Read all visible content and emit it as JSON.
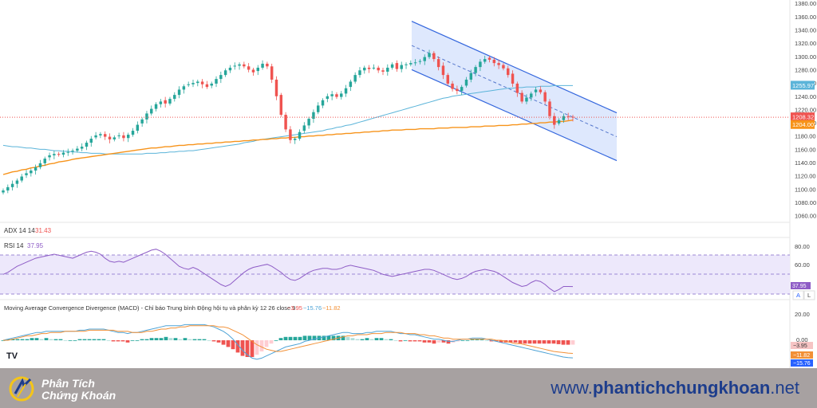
{
  "colors": {
    "up": "#26a69a",
    "down": "#ef5350",
    "ma_long": "#f7931a",
    "ma_mid": "#5bb4d9",
    "channel_fill": "#c8d8fb",
    "channel_line": "#3366dd",
    "rsi_line": "#8e5cc6",
    "rsi_band": "#ede8fb",
    "macd_line": "#4ea3d6",
    "signal_line": "#f29036",
    "footer_bg": "#a7a1a1",
    "brand_blue": "#1d3d8c"
  },
  "price_axis": {
    "ticks": [
      "1380.00",
      "1360.00",
      "1340.00",
      "1320.00",
      "1300.00",
      "1280.00",
      "1260.00",
      "1240.00",
      "1220.00",
      "1200.00",
      "1180.00",
      "1160.00",
      "1140.00",
      "1120.00",
      "1100.00",
      "1080.00",
      "1060.00"
    ],
    "min": 1050,
    "max": 1385
  },
  "price_badges": {
    "ma_mid": "1255.97",
    "last": "1208.32",
    "ma_long": "1204.00"
  },
  "adx": {
    "label": "ADX 14 14",
    "value": "31.43"
  },
  "rsi": {
    "label": "RSI 14",
    "value": "37.95",
    "ticks": [
      "80.00",
      "60.00"
    ],
    "badge": "37.95",
    "upper": 70,
    "middle": 50,
    "lower": 30
  },
  "macd": {
    "label": "Moving Average Convergence Divergence (MACD) - Chỉ báo Trung bình Động hội tụ và phân kỳ 12 26 close 9",
    "hist_value": "−3.95",
    "macd_value": "−15.76",
    "signal_value": "−11.82",
    "ticks": [
      "20.00",
      "0.00"
    ],
    "badges": {
      "hist": "−3.95",
      "signal": "−11.82",
      "macd": "−15.76"
    }
  },
  "scale_buttons": {
    "auto": "A",
    "log": "L"
  },
  "chart_data": [
    {
      "type": "candlestick",
      "title": "",
      "ylim": [
        1050,
        1385
      ],
      "close": [
        1098,
        1103,
        1108,
        1113,
        1119,
        1124,
        1128,
        1133,
        1139,
        1146,
        1151,
        1153,
        1152,
        1155,
        1156,
        1158,
        1161,
        1164,
        1170,
        1176,
        1181,
        1183,
        1179,
        1175,
        1178,
        1181,
        1177,
        1182,
        1188,
        1197,
        1205,
        1214,
        1221,
        1228,
        1232,
        1229,
        1236,
        1242,
        1250,
        1255,
        1258,
        1260,
        1262,
        1258,
        1254,
        1259,
        1266,
        1272,
        1279,
        1283,
        1286,
        1288,
        1285,
        1280,
        1276,
        1283,
        1289,
        1285,
        1265,
        1240,
        1212,
        1190,
        1174,
        1176,
        1186,
        1196,
        1206,
        1216,
        1226,
        1234,
        1240,
        1243,
        1239,
        1244,
        1252,
        1262,
        1272,
        1279,
        1283,
        1281,
        1283,
        1279,
        1277,
        1283,
        1288,
        1281,
        1287,
        1288,
        1290,
        1291,
        1293,
        1299,
        1305,
        1296,
        1284,
        1272,
        1259,
        1251,
        1248,
        1254,
        1265,
        1275,
        1284,
        1292,
        1296,
        1295,
        1290,
        1287,
        1282,
        1272,
        1259,
        1245,
        1232,
        1238,
        1244,
        1250,
        1246,
        1232,
        1210,
        1197,
        1204,
        1210,
        1209,
        1208
      ],
      "ma200": [
        1122,
        1124,
        1126,
        1127,
        1129,
        1130,
        1132,
        1133,
        1135,
        1136,
        1138,
        1139,
        1141,
        1142,
        1143,
        1145,
        1146,
        1147,
        1148,
        1149,
        1150,
        1151,
        1152,
        1153,
        1154,
        1155,
        1156,
        1157,
        1158,
        1159,
        1160,
        1161,
        1162,
        1162,
        1163,
        1164,
        1164,
        1165,
        1166,
        1166,
        1167,
        1167,
        1168,
        1168,
        1169,
        1169,
        1170,
        1170,
        1171,
        1171,
        1172,
        1172,
        1173,
        1173,
        1174,
        1174,
        1175,
        1175,
        1176,
        1176,
        1177,
        1177,
        1178,
        1178,
        1179,
        1179,
        1180,
        1180,
        1181,
        1181,
        1182,
        1182,
        1183,
        1183,
        1184,
        1184,
        1185,
        1185,
        1186,
        1186,
        1187,
        1187,
        1188,
        1188,
        1189,
        1189,
        1189,
        1190,
        1190,
        1190,
        1191,
        1191,
        1191,
        1191,
        1192,
        1192,
        1192,
        1193,
        1193,
        1193,
        1193,
        1194,
        1194,
        1194,
        1195,
        1195,
        1195,
        1196,
        1196,
        1196,
        1197,
        1197,
        1198,
        1198,
        1199,
        1199,
        1200,
        1200,
        1201,
        1201,
        1202,
        1202,
        1203,
        1204
      ],
      "ma100": [
        1166,
        1165,
        1164,
        1164,
        1163,
        1162,
        1162,
        1161,
        1160,
        1160,
        1159,
        1158,
        1158,
        1157,
        1157,
        1156,
        1156,
        1155,
        1155,
        1154,
        1154,
        1154,
        1153,
        1153,
        1153,
        1153,
        1153,
        1153,
        1153,
        1153,
        1153,
        1154,
        1154,
        1154,
        1155,
        1155,
        1156,
        1156,
        1157,
        1157,
        1158,
        1158,
        1159,
        1160,
        1161,
        1162,
        1163,
        1164,
        1165,
        1166,
        1167,
        1168,
        1170,
        1171,
        1172,
        1174,
        1175,
        1176,
        1177,
        1178,
        1179,
        1180,
        1181,
        1182,
        1183,
        1184,
        1185,
        1186,
        1187,
        1188,
        1190,
        1191,
        1193,
        1194,
        1196,
        1197,
        1199,
        1201,
        1203,
        1205,
        1207,
        1209,
        1211,
        1213,
        1215,
        1217,
        1219,
        1221,
        1223,
        1225,
        1227,
        1229,
        1231,
        1233,
        1235,
        1237,
        1238,
        1240,
        1241,
        1242,
        1243,
        1244,
        1245,
        1246,
        1247,
        1248,
        1249,
        1250,
        1251,
        1252,
        1252,
        1253,
        1253,
        1254,
        1254,
        1254,
        1255,
        1255,
        1255,
        1256,
        1256,
        1256,
        1256,
        1256
      ]
    },
    {
      "type": "line",
      "title": "RSI 14",
      "ylim": [
        25,
        85
      ],
      "values": [
        50,
        52,
        55,
        58,
        60,
        62,
        64,
        66,
        67,
        68,
        69,
        70,
        69,
        68,
        67,
        66,
        68,
        70,
        72,
        73,
        72,
        70,
        66,
        63,
        62,
        63,
        62,
        64,
        66,
        68,
        70,
        72,
        74,
        75,
        73,
        70,
        66,
        62,
        58,
        56,
        55,
        57,
        55,
        52,
        49,
        46,
        43,
        40,
        38,
        40,
        44,
        48,
        52,
        55,
        57,
        58,
        59,
        60,
        58,
        55,
        52,
        48,
        45,
        44,
        46,
        49,
        52,
        54,
        55,
        56,
        56,
        55,
        55,
        56,
        58,
        59,
        58,
        57,
        56,
        55,
        54,
        52,
        50,
        49,
        48,
        49,
        50,
        51,
        52,
        53,
        54,
        55,
        55,
        54,
        52,
        50,
        48,
        46,
        45,
        46,
        48,
        51,
        53,
        54,
        55,
        54,
        53,
        51,
        48,
        45,
        42,
        40,
        38,
        39,
        42,
        44,
        43,
        40,
        36,
        33,
        35,
        38,
        38,
        37.95
      ]
    },
    {
      "type": "line",
      "title": "MACD",
      "ylim": [
        -25,
        25
      ],
      "macd": [
        0,
        1,
        2,
        3,
        4,
        5,
        6,
        7,
        7,
        8,
        8,
        8,
        8,
        8,
        8,
        8,
        9,
        9,
        10,
        10,
        10,
        10,
        9,
        8,
        7,
        7,
        6,
        7,
        7,
        8,
        9,
        10,
        11,
        12,
        13,
        13,
        13,
        13,
        14,
        14,
        14,
        14,
        14,
        13,
        12,
        10,
        8,
        5,
        1,
        -4,
        -9,
        -13,
        -16,
        -17,
        -16,
        -14,
        -12,
        -10,
        -8,
        -6,
        -5,
        -4,
        -3,
        -1,
        0,
        1,
        2,
        3,
        4,
        5,
        6,
        7,
        7,
        6,
        6,
        6,
        7,
        7,
        8,
        8,
        8,
        8,
        7,
        6,
        6,
        5,
        5,
        4,
        3,
        2,
        1,
        1,
        0,
        -1,
        -1,
        0,
        1,
        1,
        2,
        2,
        2,
        1,
        0,
        -1,
        -2,
        -3,
        -4,
        -5,
        -6,
        -7,
        -8,
        -9,
        -10,
        -11,
        -12,
        -13,
        -14,
        -15,
        -15.5,
        -15.76
      ],
      "signal": [
        0,
        0,
        1,
        2,
        3,
        4,
        4,
        5,
        6,
        6,
        7,
        7,
        7,
        8,
        8,
        8,
        8,
        8,
        9,
        9,
        9,
        9,
        9,
        9,
        8,
        8,
        8,
        7,
        7,
        7,
        8,
        8,
        9,
        10,
        10,
        11,
        11,
        12,
        12,
        13,
        13,
        13,
        13,
        13,
        13,
        12,
        12,
        11,
        9,
        7,
        5,
        2,
        -1,
        -4,
        -6,
        -8,
        -9,
        -10,
        -10,
        -9,
        -8,
        -7,
        -6,
        -5,
        -4,
        -3,
        -2,
        -1,
        0,
        1,
        2,
        3,
        4,
        4,
        5,
        5,
        5,
        6,
        6,
        6,
        7,
        7,
        7,
        7,
        6,
        6,
        6,
        5,
        5,
        4,
        4,
        3,
        2,
        2,
        1,
        1,
        1,
        1,
        1,
        1,
        1,
        1,
        1,
        0,
        0,
        -1,
        -2,
        -3,
        -3,
        -4,
        -5,
        -6,
        -7,
        -8,
        -9,
        -10,
        -10.5,
        -11,
        -11.5,
        -11.82
      ],
      "histogram_last": -3.95
    }
  ]
}
